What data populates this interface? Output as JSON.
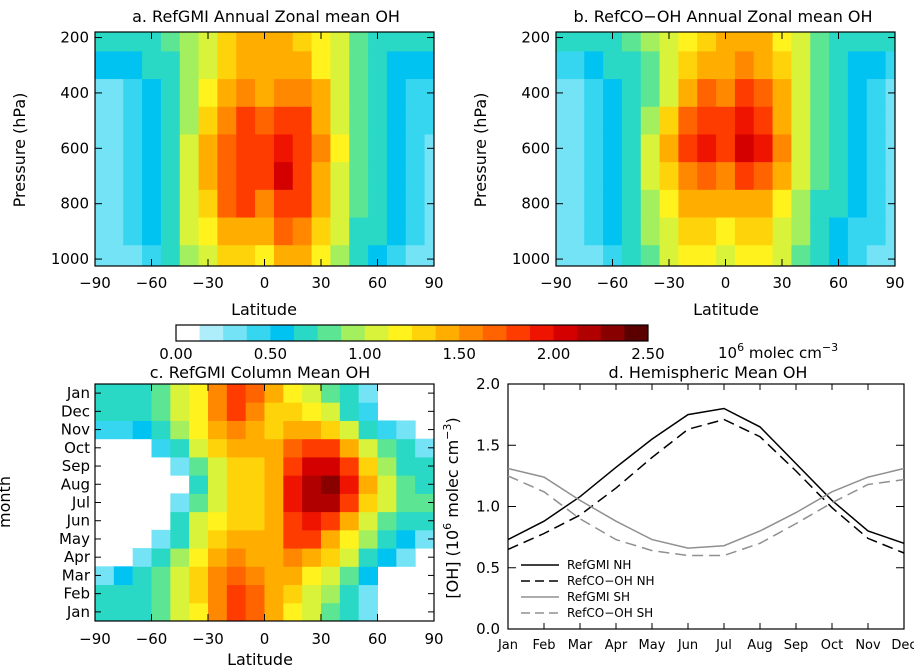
{
  "chart_data": [
    {
      "id": "a",
      "type": "heatmap",
      "title": "a. RefGMI Annual Zonal mean OH",
      "xlabel": "Latitude",
      "ylabel": "Pressure (hPa)",
      "xlim": [
        -90,
        90
      ],
      "ylim": [
        1025,
        180
      ],
      "xticks": [
        "-90",
        "-60",
        "-30",
        "0",
        "30",
        "60",
        "90"
      ],
      "yticks": [
        "200",
        "400",
        "600",
        "800",
        "1000"
      ],
      "x": [
        -90,
        -80,
        -70,
        -60,
        -50,
        -40,
        -30,
        -20,
        -10,
        0,
        10,
        20,
        30,
        40,
        50,
        60,
        70,
        80,
        90
      ],
      "y": [
        200,
        300,
        400,
        500,
        600,
        700,
        800,
        900,
        1000
      ],
      "z": [
        [
          0.6,
          0.6,
          0.7,
          0.7,
          0.8,
          0.9,
          1.1,
          1.3,
          1.4,
          1.4,
          1.4,
          1.3,
          1.2,
          1.0,
          0.8,
          0.7,
          0.6,
          0.6,
          0.6
        ],
        [
          0.5,
          0.5,
          0.5,
          0.6,
          0.7,
          0.9,
          1.1,
          1.3,
          1.5,
          1.5,
          1.5,
          1.4,
          1.2,
          1.0,
          0.8,
          0.6,
          0.5,
          0.5,
          0.5
        ],
        [
          0.3,
          0.3,
          0.4,
          0.5,
          0.7,
          0.9,
          1.2,
          1.5,
          1.6,
          1.5,
          1.6,
          1.6,
          1.4,
          1.1,
          0.8,
          0.6,
          0.5,
          0.4,
          0.4
        ],
        [
          0.3,
          0.3,
          0.4,
          0.5,
          0.7,
          0.9,
          1.3,
          1.6,
          1.8,
          1.7,
          1.8,
          1.8,
          1.5,
          1.1,
          0.8,
          0.6,
          0.5,
          0.4,
          0.4
        ],
        [
          0.3,
          0.3,
          0.4,
          0.5,
          0.7,
          1.0,
          1.4,
          1.7,
          1.9,
          1.8,
          2.0,
          1.9,
          1.6,
          1.2,
          0.8,
          0.6,
          0.5,
          0.4,
          0.3
        ],
        [
          0.3,
          0.3,
          0.4,
          0.5,
          0.7,
          1.0,
          1.4,
          1.7,
          1.9,
          1.8,
          2.1,
          1.9,
          1.5,
          1.1,
          0.8,
          0.6,
          0.5,
          0.4,
          0.3
        ],
        [
          0.3,
          0.3,
          0.4,
          0.5,
          0.7,
          1.0,
          1.3,
          1.7,
          1.8,
          1.6,
          1.9,
          1.8,
          1.4,
          1.0,
          0.8,
          0.6,
          0.5,
          0.4,
          0.3
        ],
        [
          0.3,
          0.3,
          0.4,
          0.5,
          0.7,
          1.0,
          1.2,
          1.5,
          1.5,
          1.4,
          1.7,
          1.6,
          1.3,
          1.0,
          0.7,
          0.6,
          0.5,
          0.4,
          0.3
        ],
        [
          0.2,
          0.3,
          0.3,
          0.4,
          0.6,
          0.9,
          1.1,
          1.3,
          1.3,
          1.2,
          1.5,
          1.4,
          1.2,
          0.9,
          0.7,
          0.5,
          0.4,
          0.3,
          0.3
        ]
      ]
    },
    {
      "id": "b",
      "type": "heatmap",
      "title": "b. RefCO−OH Annual Zonal mean OH",
      "xlabel": "Latitude",
      "ylabel": "Pressure (hPa)",
      "xlim": [
        -90,
        90
      ],
      "ylim": [
        1025,
        180
      ],
      "xticks": [
        "-90",
        "-60",
        "-30",
        "0",
        "30",
        "60",
        "90"
      ],
      "yticks": [
        "200",
        "400",
        "600",
        "800",
        "1000"
      ],
      "x": [
        -90,
        -80,
        -70,
        -60,
        -50,
        -40,
        -30,
        -20,
        -10,
        0,
        10,
        20,
        30,
        40,
        50,
        60,
        70,
        80,
        90
      ],
      "y": [
        200,
        300,
        400,
        500,
        600,
        700,
        800,
        900,
        1000
      ],
      "z": [
        [
          0.6,
          0.6,
          0.6,
          0.7,
          0.8,
          0.9,
          1.0,
          1.2,
          1.3,
          1.4,
          1.5,
          1.4,
          1.2,
          1.0,
          0.8,
          0.7,
          0.6,
          0.6,
          0.6
        ],
        [
          0.4,
          0.4,
          0.5,
          0.6,
          0.7,
          0.8,
          1.0,
          1.3,
          1.5,
          1.5,
          1.6,
          1.5,
          1.3,
          1.0,
          0.8,
          0.6,
          0.5,
          0.5,
          0.4
        ],
        [
          0.3,
          0.3,
          0.4,
          0.5,
          0.6,
          0.8,
          1.1,
          1.5,
          1.7,
          1.6,
          1.8,
          1.7,
          1.4,
          1.0,
          0.8,
          0.6,
          0.5,
          0.4,
          0.3
        ],
        [
          0.3,
          0.3,
          0.4,
          0.5,
          0.7,
          0.9,
          1.3,
          1.7,
          1.9,
          1.8,
          2.0,
          1.9,
          1.5,
          1.1,
          0.8,
          0.6,
          0.5,
          0.4,
          0.3
        ],
        [
          0.3,
          0.3,
          0.4,
          0.5,
          0.7,
          1.0,
          1.5,
          1.9,
          2.0,
          1.9,
          2.1,
          2.0,
          1.6,
          1.1,
          0.8,
          0.6,
          0.5,
          0.4,
          0.3
        ],
        [
          0.3,
          0.3,
          0.4,
          0.5,
          0.7,
          1.0,
          1.3,
          1.6,
          1.7,
          1.6,
          1.8,
          1.7,
          1.4,
          1.0,
          0.8,
          0.6,
          0.5,
          0.4,
          0.3
        ],
        [
          0.3,
          0.3,
          0.4,
          0.5,
          0.7,
          0.9,
          1.2,
          1.4,
          1.4,
          1.4,
          1.5,
          1.4,
          1.2,
          0.9,
          0.7,
          0.6,
          0.5,
          0.4,
          0.3
        ],
        [
          0.3,
          0.3,
          0.4,
          0.5,
          0.6,
          0.9,
          1.1,
          1.3,
          1.3,
          1.2,
          1.3,
          1.3,
          1.1,
          0.9,
          0.7,
          0.5,
          0.4,
          0.4,
          0.3
        ],
        [
          0.3,
          0.3,
          0.3,
          0.4,
          0.6,
          0.8,
          1.0,
          1.2,
          1.2,
          1.1,
          1.2,
          1.2,
          1.0,
          0.8,
          0.6,
          0.5,
          0.4,
          0.3,
          0.3
        ]
      ]
    },
    {
      "id": "colorbar",
      "type": "colorbar",
      "range": [
        0.0,
        2.5
      ],
      "ticks": [
        "0.00",
        "0.50",
        "1.00",
        "1.50",
        "2.00",
        "2.50"
      ],
      "units_main": "10",
      "units_exp": "6",
      "units_rest": " molec cm",
      "units_neg_exp": "−3",
      "colors": [
        "#ffffff",
        "#aeeefa",
        "#73e3f5",
        "#36d6f0",
        "#00c3f2",
        "#29d9c5",
        "#5ce693",
        "#a3ef5e",
        "#d9f33b",
        "#fff21d",
        "#ffd30a",
        "#ffae00",
        "#ff8800",
        "#ff6400",
        "#ff3c00",
        "#ee1400",
        "#d40000",
        "#b00000",
        "#880000",
        "#5a0000"
      ]
    },
    {
      "id": "c",
      "type": "heatmap",
      "title": "c. RefGMI Column Mean OH",
      "xlabel": "Latitude",
      "ylabel": "month",
      "xlim": [
        -90,
        90
      ],
      "xticks": [
        "-90",
        "-60",
        "-30",
        "0",
        "30",
        "60",
        "90"
      ],
      "yticks": [
        "Jan",
        "Feb",
        "Mar",
        "Apr",
        "May",
        "Jun",
        "Jul",
        "Aug",
        "Sep",
        "Oct",
        "Nov",
        "Dec",
        "Jan"
      ],
      "x": [
        -85,
        -75,
        -65,
        -55,
        -45,
        -35,
        -25,
        -15,
        -5,
        5,
        15,
        25,
        35,
        45,
        55,
        65,
        75,
        85
      ],
      "y": [
        "Jan",
        "Feb",
        "Mar",
        "Apr",
        "May",
        "Jun",
        "Jul",
        "Aug",
        "Sep",
        "Oct",
        "Nov",
        "Dec",
        "Jan"
      ],
      "z": [
        [
          0.6,
          0.6,
          0.7,
          0.8,
          1.0,
          1.2,
          1.6,
          1.8,
          1.7,
          1.4,
          1.2,
          1.0,
          0.8,
          0.6,
          0.3,
          0.0,
          0.0,
          0.0
        ],
        [
          0.6,
          0.6,
          0.7,
          0.8,
          1.0,
          1.3,
          1.6,
          1.8,
          1.7,
          1.5,
          1.3,
          1.1,
          0.9,
          0.7,
          0.3,
          0.0,
          0.0,
          0.0
        ],
        [
          0.3,
          0.5,
          0.7,
          0.8,
          1.0,
          1.3,
          1.6,
          1.7,
          1.6,
          1.5,
          1.4,
          1.2,
          1.0,
          0.8,
          0.5,
          0.0,
          0.0,
          0.0
        ],
        [
          0.0,
          0.0,
          0.3,
          0.6,
          0.9,
          1.2,
          1.4,
          1.6,
          1.5,
          1.5,
          1.6,
          1.5,
          1.3,
          1.0,
          0.7,
          0.5,
          0.3,
          0.0
        ],
        [
          0.0,
          0.0,
          0.0,
          0.3,
          0.7,
          1.1,
          1.3,
          1.4,
          1.4,
          1.5,
          1.8,
          1.8,
          1.5,
          1.2,
          0.9,
          0.6,
          0.5,
          0.3
        ],
        [
          0.0,
          0.0,
          0.0,
          0.0,
          0.6,
          1.0,
          1.2,
          1.3,
          1.3,
          1.5,
          1.9,
          2.0,
          1.8,
          1.5,
          1.1,
          0.8,
          0.6,
          0.6
        ],
        [
          0.0,
          0.0,
          0.0,
          0.0,
          0.3,
          0.8,
          1.1,
          1.3,
          1.3,
          1.5,
          2.0,
          2.2,
          2.3,
          1.9,
          1.3,
          1.0,
          0.8,
          0.8
        ],
        [
          0.0,
          0.0,
          0.0,
          0.0,
          0.0,
          0.7,
          1.1,
          1.3,
          1.3,
          1.5,
          2.0,
          2.2,
          2.4,
          2.0,
          1.4,
          1.0,
          0.8,
          0.6
        ],
        [
          0.0,
          0.0,
          0.0,
          0.0,
          0.3,
          0.8,
          1.1,
          1.3,
          1.3,
          1.5,
          1.9,
          2.1,
          2.1,
          1.8,
          1.3,
          0.9,
          0.6,
          0.6
        ],
        [
          0.0,
          0.0,
          0.0,
          0.4,
          0.7,
          1.0,
          1.3,
          1.4,
          1.4,
          1.4,
          1.7,
          1.9,
          1.8,
          1.4,
          1.1,
          0.8,
          0.6,
          0.3
        ],
        [
          0.4,
          0.4,
          0.5,
          0.7,
          0.9,
          1.2,
          1.5,
          1.6,
          1.5,
          1.3,
          1.5,
          1.5,
          1.3,
          1.0,
          0.7,
          0.4,
          0.3,
          0.0
        ],
        [
          0.6,
          0.6,
          0.7,
          0.8,
          1.0,
          1.2,
          1.6,
          1.8,
          1.6,
          1.3,
          1.3,
          1.2,
          1.0,
          0.7,
          0.4,
          0.0,
          0.0,
          0.0
        ],
        [
          0.6,
          0.6,
          0.7,
          0.8,
          1.0,
          1.2,
          1.6,
          1.8,
          1.7,
          1.4,
          1.2,
          1.0,
          0.8,
          0.6,
          0.3,
          0.0,
          0.0,
          0.0
        ]
      ]
    },
    {
      "id": "d",
      "type": "line",
      "title": "d. Hemispheric Mean OH",
      "xlabel": "",
      "ylabel_pre": "[OH] (10",
      "ylabel_exp": "6",
      "ylabel_mid": " molec cm",
      "ylabel_neg_exp": "−3",
      "ylabel_post": ")",
      "ylim": [
        0.0,
        2.0
      ],
      "yticks": [
        "0.0",
        "0.5",
        "1.0",
        "1.5",
        "2.0"
      ],
      "categories": [
        "Jan",
        "Feb",
        "Mar",
        "Apr",
        "May",
        "Jun",
        "Jul",
        "Aug",
        "Sep",
        "Oct",
        "Nov",
        "Dec"
      ],
      "legend_position": "bottom-left",
      "series": [
        {
          "name": "RefGMI NH",
          "color": "#000000",
          "dash": "solid",
          "values": [
            0.73,
            0.88,
            1.08,
            1.32,
            1.55,
            1.75,
            1.8,
            1.65,
            1.35,
            1.05,
            0.8,
            0.7
          ]
        },
        {
          "name": "RefCO−OH NH",
          "color": "#000000",
          "dash": "dashed",
          "values": [
            0.65,
            0.78,
            0.93,
            1.15,
            1.4,
            1.63,
            1.71,
            1.57,
            1.29,
            0.99,
            0.74,
            0.62
          ]
        },
        {
          "name": "RefGMI SH",
          "color": "#909090",
          "dash": "solid",
          "values": [
            1.31,
            1.24,
            1.05,
            0.88,
            0.73,
            0.66,
            0.68,
            0.8,
            0.95,
            1.12,
            1.24,
            1.31
          ]
        },
        {
          "name": "RefCO−OH SH",
          "color": "#909090",
          "dash": "dashed",
          "values": [
            1.25,
            1.12,
            0.9,
            0.73,
            0.64,
            0.6,
            0.6,
            0.7,
            0.86,
            1.03,
            1.18,
            1.22
          ]
        }
      ]
    }
  ]
}
